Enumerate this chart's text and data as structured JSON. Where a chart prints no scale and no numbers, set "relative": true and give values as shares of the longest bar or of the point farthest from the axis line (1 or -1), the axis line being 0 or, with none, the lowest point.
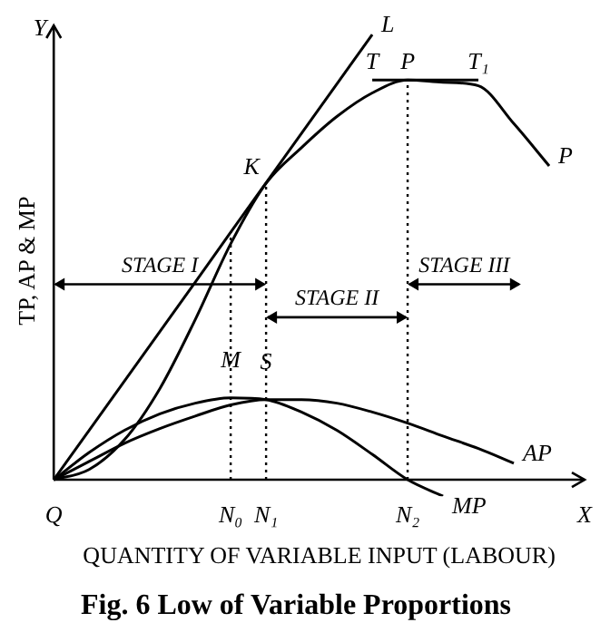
{
  "chart_data": {
    "type": "line",
    "relative": true,
    "title": "Fig. 6 Low of Variable Proportions",
    "xlabel": "QUANTITY OF VARIABLE INPUT (LABOUR)",
    "ylabel": "TP, AP & MP",
    "categories": [
      "Q",
      null,
      null,
      null,
      null,
      "N₀",
      "N₁",
      null,
      null,
      null,
      "N₂",
      null,
      null,
      null,
      null,
      "X"
    ],
    "tick_labels": "x",
    "grid": false,
    "legend": false,
    "marker": "none",
    "line_style": "solid",
    "series": [
      {
        "name": "L",
        "color": "#000000",
        "values": [
          0,
          0.111,
          0.222,
          0.333,
          0.444,
          0.556,
          0.667,
          0.778,
          0.889,
          1,
          null,
          null,
          null,
          null,
          null,
          null
        ]
      },
      {
        "name": "P",
        "color": "#000000",
        "values": [
          0,
          0.023,
          0.09,
          0.205,
          0.36,
          0.53,
          0.666,
          0.746,
          0.816,
          0.869,
          0.898,
          0.893,
          0.885,
          0.8,
          0.705,
          null
        ]
      },
      {
        "color": "#000000",
        "values": [
          null,
          null,
          null,
          null,
          null,
          null,
          null,
          null,
          null,
          0.898,
          0.898,
          0.898,
          0.898,
          null,
          null,
          null
        ]
      },
      {
        "name": "AP",
        "color": "#000000",
        "values": [
          0,
          0.041,
          0.082,
          0.115,
          0.143,
          0.168,
          0.18,
          0.18,
          0.172,
          0.152,
          0.127,
          0.098,
          0.07,
          0.037,
          null,
          null
        ]
      },
      {
        "name": "MP",
        "color": "#000000",
        "values": [
          0,
          0.061,
          0.111,
          0.148,
          0.172,
          0.184,
          0.18,
          0.152,
          0.111,
          0.057,
          0,
          -0.037,
          null,
          null,
          null,
          null
        ]
      }
    ],
    "ref_lines": [
      {
        "axis": "x",
        "value": "N₀",
        "line_style": "dotted"
      },
      {
        "axis": "x",
        "value": "N₁",
        "line_style": "dotted"
      },
      {
        "axis": "x",
        "value": "N₂",
        "line_style": "dotted"
      }
    ],
    "annotations": [
      "Y",
      "T",
      "T₁",
      "STAGE I",
      "STAGE II",
      "STAGE III",
      {
        "text": "P",
        "x": "N₂",
        "y": 0.898
      },
      {
        "text": "K",
        "x": "N₁",
        "y": 0.666
      },
      {
        "text": "M",
        "x": "N₀",
        "y": 0.184
      },
      {
        "text": "S",
        "x": "N₁",
        "y": 0.18
      }
    ]
  }
}
